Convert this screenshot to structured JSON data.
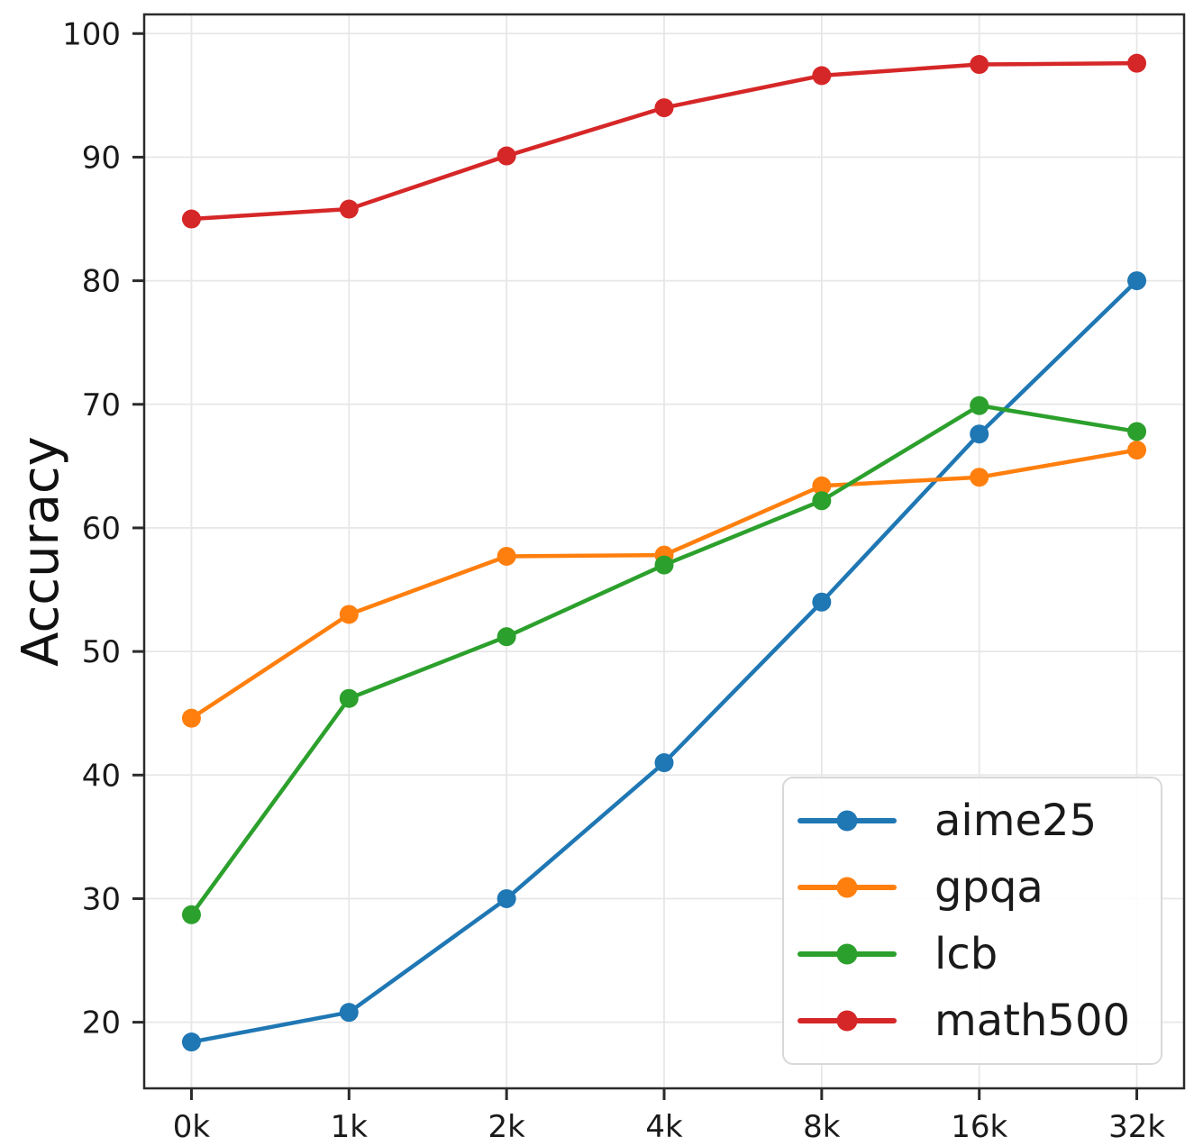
{
  "figure": {
    "background": "#ffffff"
  },
  "chart_data": {
    "type": "line",
    "title": "",
    "xlabel": "",
    "ylabel": "Accuracy",
    "categories": [
      "0k",
      "1k",
      "2k",
      "4k",
      "8k",
      "16k",
      "32k"
    ],
    "series": [
      {
        "name": "aime25",
        "color": "#1f77b4",
        "values": [
          18.4,
          20.8,
          30.0,
          41.0,
          54.0,
          67.6,
          80.0
        ]
      },
      {
        "name": "gpqa",
        "color": "#ff7f0e",
        "values": [
          44.6,
          53.0,
          57.7,
          57.8,
          63.4,
          64.1,
          66.3
        ]
      },
      {
        "name": "lcb",
        "color": "#2ca02c",
        "values": [
          28.7,
          46.2,
          51.2,
          57.0,
          62.2,
          69.9,
          67.8
        ]
      },
      {
        "name": "math500",
        "color": "#d62728",
        "values": [
          85.0,
          85.8,
          90.1,
          94.0,
          96.6,
          97.5,
          97.6
        ]
      }
    ],
    "yticks": [
      20,
      30,
      40,
      50,
      60,
      70,
      80,
      90,
      100
    ],
    "ylim": [
      14.65,
      101.55
    ],
    "grid": true,
    "legend_position": "lower right",
    "axis_color": "#2b2b2b",
    "grid_color": "#e7e7e7",
    "tick_label_color": "#1a1a1a"
  }
}
